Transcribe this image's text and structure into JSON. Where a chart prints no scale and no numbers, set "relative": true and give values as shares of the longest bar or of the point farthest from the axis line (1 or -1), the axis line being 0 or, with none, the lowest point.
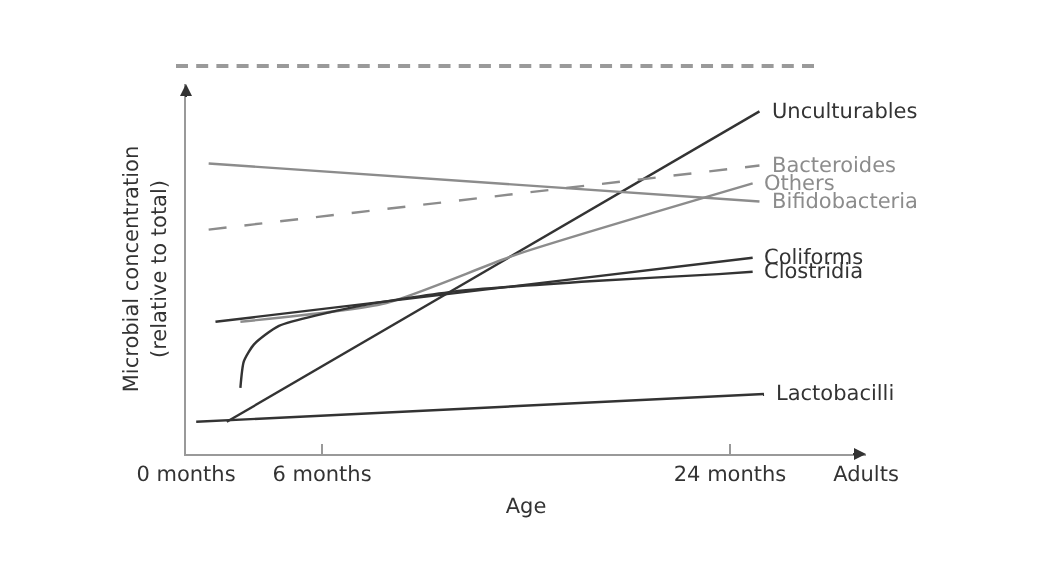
{
  "chart_data": {
    "type": "line",
    "relative": true,
    "xlabel": "Age",
    "ylabel": "Microbial concentration\n(relative to total)",
    "xlim": [
      0,
      30
    ],
    "xticks": [
      {
        "value": 0,
        "label": "0 months"
      },
      {
        "value": 6,
        "label": "6 months"
      },
      {
        "value": 24,
        "label": "24 months"
      },
      {
        "value": 30,
        "label": "Adults"
      }
    ],
    "grid": false,
    "legend": false,
    "marker": "none",
    "line_style": "solid",
    "series": [
      {
        "name": "Unculturables",
        "color": "#333333",
        "x": [
          1.8,
          25.3
        ],
        "values": [
          0.094,
          1
        ]
      },
      {
        "name": "Bacteroides",
        "color": "#8c8c8c",
        "line_style": "dashed",
        "x": [
          1,
          25.3
        ],
        "values": [
          0.655,
          0.842
        ]
      },
      {
        "name": "Others",
        "color": "#8c8c8c",
        "x": [
          2.4,
          8.8,
          14.7,
          25
        ],
        "values": [
          0.386,
          0.44,
          0.585,
          0.79
        ]
      },
      {
        "name": "Bifidobacteria",
        "color": "#8c8c8c",
        "x": [
          1,
          25.3
        ],
        "values": [
          0.848,
          0.737
        ]
      },
      {
        "name": "Coliforms",
        "color": "#333333",
        "x": [
          1.3,
          25
        ],
        "values": [
          0.386,
          0.573
        ]
      },
      {
        "name": "Clostridia",
        "color": "#333333",
        "x": [
          2.4,
          2.55,
          3,
          4.1,
          7.5,
          11.8,
          18,
          23.5,
          25
        ],
        "values": [
          0.193,
          0.27,
          0.32,
          0.374,
          0.43,
          0.474,
          0.505,
          0.525,
          0.532
        ]
      },
      {
        "name": "Lactobacilli",
        "color": "#333333",
        "x": [
          0.45,
          25.5
        ],
        "values": [
          0.094,
          0.175
        ]
      }
    ]
  }
}
